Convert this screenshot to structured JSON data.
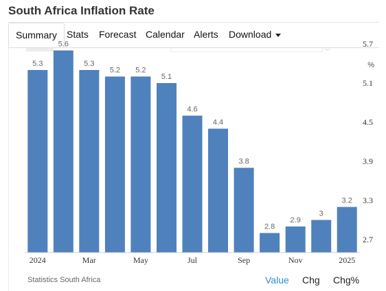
{
  "page": {
    "title": "South Africa Inflation Rate"
  },
  "tabs": [
    {
      "label": "Summary",
      "active": true
    },
    {
      "label": "Stats"
    },
    {
      "label": "Forecast"
    },
    {
      "label": "Calendar"
    },
    {
      "label": "Alerts"
    },
    {
      "label": "Download",
      "dropdown": true
    }
  ],
  "chart_data": {
    "type": "bar",
    "unit": "%",
    "categories": [
      "2024-01",
      "2024-02",
      "2024-03",
      "2024-04",
      "2024-05",
      "2024-06",
      "2024-07",
      "2024-08",
      "2024-09",
      "2024-10",
      "2024-11",
      "2024-12",
      "2025-01"
    ],
    "values": [
      5.3,
      5.6,
      5.3,
      5.2,
      5.2,
      5.1,
      4.6,
      4.4,
      3.8,
      2.8,
      2.9,
      3,
      3.2
    ],
    "data_labels": [
      "5.3",
      "5.6",
      "5.3",
      "5.2",
      "5.2",
      "5.1",
      "4.6",
      "4.4",
      "3.8",
      "2.8",
      "2.9",
      "3",
      "3.2"
    ],
    "x_tick_labels": [
      {
        "index": 0,
        "label": "2024"
      },
      {
        "index": 2,
        "label": "Mar"
      },
      {
        "index": 4,
        "label": "May"
      },
      {
        "index": 6,
        "label": "Jul"
      },
      {
        "index": 8,
        "label": "Sep"
      },
      {
        "index": 10,
        "label": "Nov"
      },
      {
        "index": 12,
        "label": "2025"
      }
    ],
    "y_ticks": [
      "2.7",
      "3.3",
      "3.9",
      "4.5",
      "5.1",
      "5.7"
    ],
    "ylim": [
      2.5,
      6.0
    ],
    "y_axis_side": "right",
    "grid": false,
    "colors": {
      "bar": "#4f81bd",
      "data_label": "#666666",
      "axis_text": "#333333"
    }
  },
  "footer": {
    "source": "Statistics South Africa",
    "links": [
      {
        "label": "Value",
        "active": true
      },
      {
        "label": "Chg"
      },
      {
        "label": "Chg%"
      }
    ],
    "colors": {
      "active_link": "#2a8fd6"
    }
  }
}
